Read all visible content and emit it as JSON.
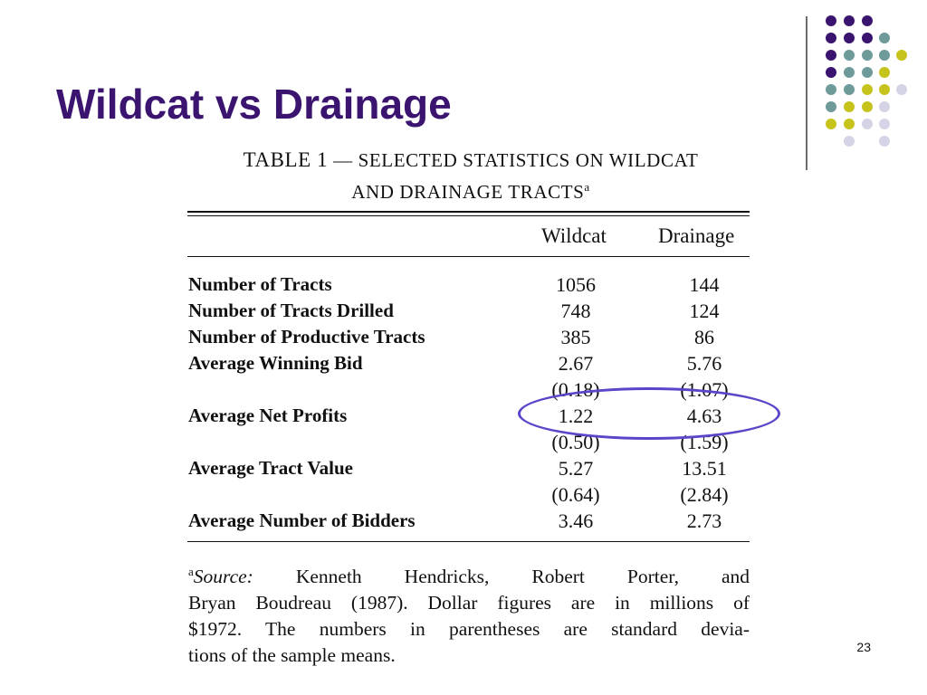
{
  "slide": {
    "title": "Wildcat vs Drainage",
    "page_number": "23"
  },
  "table": {
    "title_line1_prefix": "TABLE 1",
    "title_line1_rest": " — SELECTED STATISTICS ON WILDCAT",
    "title_line2": "AND DRAINAGE TRACTS",
    "title_superscript": "a",
    "columns": [
      "Wildcat",
      "Drainage"
    ],
    "rows": [
      {
        "label": "Number of Tracts",
        "wildcat": "1056",
        "drainage": "144"
      },
      {
        "label": "Number of Tracts Drilled",
        "wildcat": "748",
        "drainage": "124"
      },
      {
        "label": "Number of Productive Tracts",
        "wildcat": "385",
        "drainage": "86"
      },
      {
        "label": "Average Winning Bid",
        "wildcat": "2.67",
        "drainage": "5.76"
      },
      {
        "label": "",
        "wildcat": "(0.18)",
        "drainage": "(1.07)"
      },
      {
        "label": "Average Net Profits",
        "wildcat": "1.22",
        "drainage": "4.63"
      },
      {
        "label": "",
        "wildcat": "(0.50)",
        "drainage": "(1.59)"
      },
      {
        "label": "Average Tract Value",
        "wildcat": "5.27",
        "drainage": "13.51"
      },
      {
        "label": "",
        "wildcat": "(0.64)",
        "drainage": "(2.84)"
      },
      {
        "label": "Average Number of Bidders",
        "wildcat": "3.46",
        "drainage": "2.73"
      }
    ],
    "footnote": {
      "marker": "a",
      "source_label": "Source:",
      "line1_rest": " Kenneth Hendricks, Robert Porter, and",
      "line2": "Bryan Boudreau (1987). Dollar figures are in millions of",
      "line3": "$1972. The numbers in parentheses are standard devia-",
      "line4": "tions of the sample means."
    }
  },
  "colors": {
    "title": "#3b1470",
    "dot_purple": "#3b1470",
    "dot_teal": "#6e9a9a",
    "dot_yellow": "#c6c41c",
    "dot_lavender": "#d5d3e6",
    "highlight": "#5a46c8"
  }
}
